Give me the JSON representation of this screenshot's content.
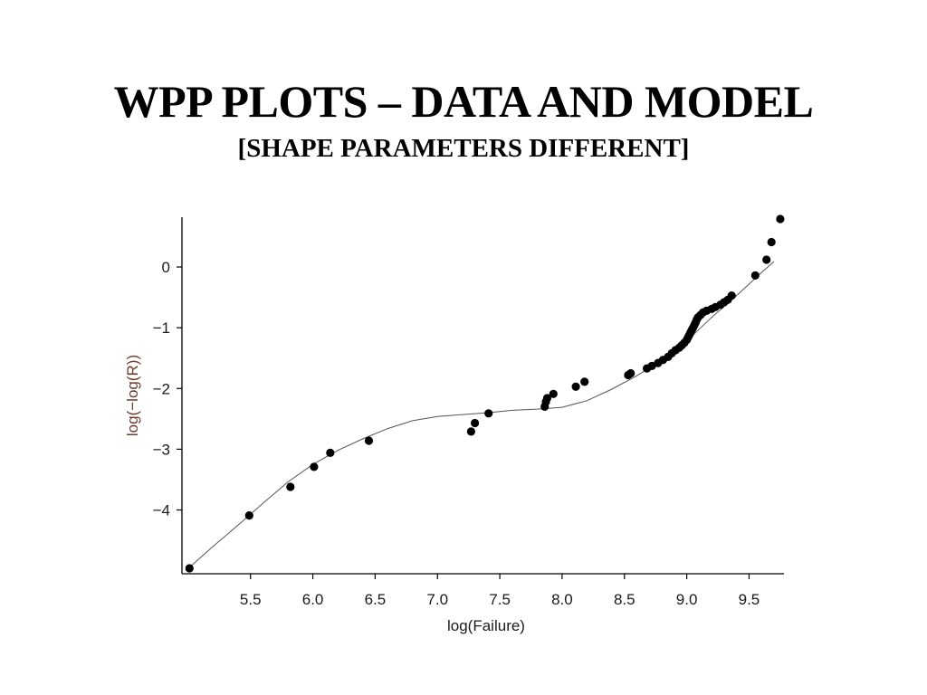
{
  "slide": {
    "title": "WPP PLOTS – DATA AND MODEL",
    "subtitle": "[SHAPE PARAMETERS DIFFERENT]"
  },
  "chart_data": {
    "type": "scatter",
    "title": "",
    "xlabel": "log(Failure)",
    "ylabel": "log(−log(R))",
    "xlim": [
      4.95,
      9.78
    ],
    "ylim": [
      -5.05,
      0.82
    ],
    "xticks": [
      {
        "value": 5.5,
        "label": "5.5"
      },
      {
        "value": 6.0,
        "label": "6.0"
      },
      {
        "value": 6.5,
        "label": "6.5"
      },
      {
        "value": 7.0,
        "label": "7.0"
      },
      {
        "value": 7.5,
        "label": "7.5"
      },
      {
        "value": 8.0,
        "label": "8.0"
      },
      {
        "value": 8.5,
        "label": "8.5"
      },
      {
        "value": 9.0,
        "label": "9.0"
      },
      {
        "value": 9.5,
        "label": "9.5"
      }
    ],
    "yticks": [
      {
        "value": 0,
        "label": "0"
      },
      {
        "value": -1,
        "label": "−1"
      },
      {
        "value": -2,
        "label": "−2"
      },
      {
        "value": -3,
        "label": "−3"
      },
      {
        "value": -4,
        "label": "−4"
      }
    ],
    "grid": false,
    "series": [
      {
        "type": "scatter",
        "points": [
          [
            5.01,
            -4.96
          ],
          [
            5.49,
            -4.09
          ],
          [
            5.82,
            -3.62
          ],
          [
            6.01,
            -3.29
          ],
          [
            6.14,
            -3.06
          ],
          [
            6.45,
            -2.86
          ],
          [
            7.27,
            -2.71
          ],
          [
            7.3,
            -2.57
          ],
          [
            7.41,
            -2.41
          ],
          [
            7.86,
            -2.3
          ],
          [
            7.87,
            -2.22
          ],
          [
            7.88,
            -2.16
          ],
          [
            7.93,
            -2.09
          ],
          [
            8.11,
            -1.97
          ],
          [
            8.18,
            -1.89
          ],
          [
            8.53,
            -1.78
          ],
          [
            8.55,
            -1.75
          ],
          [
            8.68,
            -1.67
          ],
          [
            8.72,
            -1.63
          ],
          [
            8.77,
            -1.58
          ],
          [
            8.81,
            -1.53
          ],
          [
            8.85,
            -1.48
          ],
          [
            8.88,
            -1.42
          ],
          [
            8.91,
            -1.37
          ],
          [
            8.94,
            -1.33
          ],
          [
            8.96,
            -1.29
          ],
          [
            8.98,
            -1.25
          ],
          [
            9.0,
            -1.2
          ],
          [
            9.01,
            -1.16
          ],
          [
            9.02,
            -1.12
          ],
          [
            9.03,
            -1.08
          ],
          [
            9.04,
            -1.04
          ],
          [
            9.05,
            -1.0
          ],
          [
            9.06,
            -0.96
          ],
          [
            9.07,
            -0.92
          ],
          [
            9.08,
            -0.87
          ],
          [
            9.09,
            -0.83
          ],
          [
            9.11,
            -0.79
          ],
          [
            9.13,
            -0.75
          ],
          [
            9.16,
            -0.72
          ],
          [
            9.2,
            -0.69
          ],
          [
            9.23,
            -0.66
          ],
          [
            9.27,
            -0.62
          ],
          [
            9.3,
            -0.58
          ],
          [
            9.33,
            -0.54
          ],
          [
            9.36,
            -0.47
          ],
          [
            9.55,
            -0.14
          ],
          [
            9.64,
            0.12
          ],
          [
            9.68,
            0.41
          ],
          [
            9.75,
            0.79
          ]
        ]
      },
      {
        "type": "line",
        "points": [
          [
            4.98,
            -5.0
          ],
          [
            5.2,
            -4.6
          ],
          [
            5.4,
            -4.25
          ],
          [
            5.6,
            -3.89
          ],
          [
            5.8,
            -3.54
          ],
          [
            6.0,
            -3.25
          ],
          [
            6.2,
            -3.02
          ],
          [
            6.4,
            -2.83
          ],
          [
            6.6,
            -2.66
          ],
          [
            6.8,
            -2.53
          ],
          [
            7.0,
            -2.46
          ],
          [
            7.2,
            -2.43
          ],
          [
            7.4,
            -2.4
          ],
          [
            7.6,
            -2.36
          ],
          [
            7.8,
            -2.34
          ],
          [
            8.0,
            -2.31
          ],
          [
            8.2,
            -2.2
          ],
          [
            8.4,
            -2.01
          ],
          [
            8.6,
            -1.79
          ],
          [
            8.8,
            -1.53
          ],
          [
            9.0,
            -1.22
          ],
          [
            9.2,
            -0.83
          ],
          [
            9.4,
            -0.47
          ],
          [
            9.6,
            -0.09
          ],
          [
            9.7,
            0.09
          ]
        ]
      }
    ]
  }
}
